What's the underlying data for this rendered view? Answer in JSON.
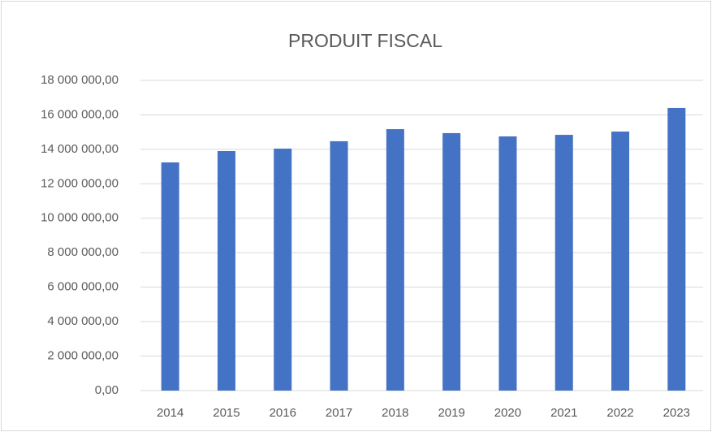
{
  "chart_data": {
    "type": "bar",
    "title": "PRODUIT FISCAL",
    "categories": [
      "2014",
      "2015",
      "2016",
      "2017",
      "2018",
      "2019",
      "2020",
      "2021",
      "2022",
      "2023"
    ],
    "values": [
      13240000,
      13900000,
      14040000,
      14470000,
      15170000,
      14940000,
      14750000,
      14840000,
      15030000,
      16400000
    ],
    "color": "#4472c4",
    "ylim": [
      0,
      18000000
    ],
    "yticks": [
      {
        "value": 0,
        "label": "0,00"
      },
      {
        "value": 2000000,
        "label": "2 000 000,00"
      },
      {
        "value": 4000000,
        "label": "4 000 000,00"
      },
      {
        "value": 6000000,
        "label": "6 000 000,00"
      },
      {
        "value": 8000000,
        "label": "8 000 000,00"
      },
      {
        "value": 10000000,
        "label": "10 000 000,00"
      },
      {
        "value": 12000000,
        "label": "12 000 000,00"
      },
      {
        "value": 14000000,
        "label": "14 000 000,00"
      },
      {
        "value": 16000000,
        "label": "16 000 000,00"
      },
      {
        "value": 18000000,
        "label": "18 000 000,00"
      }
    ],
    "grid": true
  }
}
